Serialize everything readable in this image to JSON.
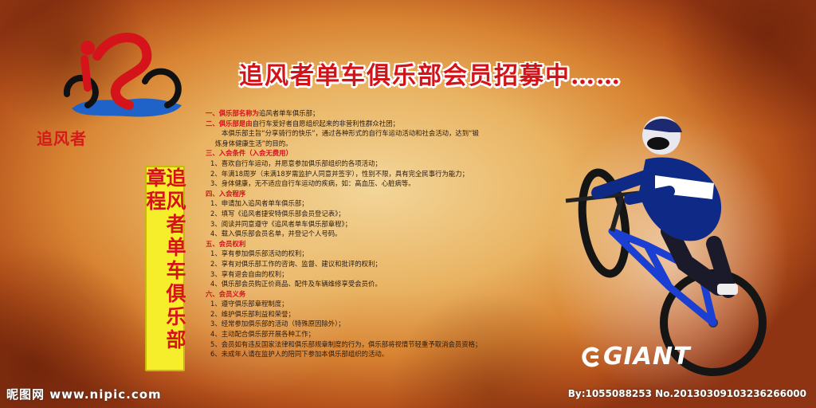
{
  "logo": {
    "text": "追风者"
  },
  "headline": "追风者单车俱乐部会员招募中……",
  "charter": "追风者单车俱乐部章程",
  "brand": "GIANT",
  "watermark": {
    "site": "昵图网 www.nipic.com",
    "id": "By:1055088253  No.20130309103236266000"
  },
  "rules": [
    {
      "type": "sec",
      "head": "一、俱乐部名称为",
      "rest": "追风者单车俱乐部；"
    },
    {
      "type": "sec",
      "head": "二、俱乐部是由",
      "rest": "自行车爱好者自愿组织起来的非营利性群众社团；"
    },
    {
      "type": "i2",
      "text": "本俱乐部主旨“分享骑行的快乐”，通过各种形式的自行车运动活动和社会活动，达到“锻"
    },
    {
      "type": "i3",
      "text": "炼身体健康生活”的目的。"
    },
    {
      "type": "sec",
      "head": "三、入会条件（入会无费用）",
      "rest": ""
    },
    {
      "type": "i1",
      "text": "1、喜欢自行车运动，并愿意参加俱乐部组织的各项活动；"
    },
    {
      "type": "i1",
      "text": "2、年满18周岁（未满18岁需监护人同意并签字），性别不限，具有完全民事行为能力；"
    },
    {
      "type": "i1",
      "text": "3、身体健康，无不适应自行车运动的疾病，如：高血压、心脏病等。"
    },
    {
      "type": "sec",
      "head": "四、入会程序",
      "rest": ""
    },
    {
      "type": "i1",
      "text": "1、申请加入追风者单车俱乐部；"
    },
    {
      "type": "i1",
      "text": "2、填写《追风者捷安特俱乐部会员登记表》；"
    },
    {
      "type": "i1",
      "text": "3、阅读并同意遵守《追风者单车俱乐部章程》；"
    },
    {
      "type": "i1",
      "text": "4、载入俱乐部会员名单，并登记个人号码。"
    },
    {
      "type": "sec",
      "head": "五、会员权利",
      "rest": ""
    },
    {
      "type": "i1",
      "text": "1、享有参加俱乐部活动的权利；"
    },
    {
      "type": "i1",
      "text": "2、享有对俱乐部工作的咨询、监督、建议和批评的权利；"
    },
    {
      "type": "i1",
      "text": "3、享有退会自由的权利；"
    },
    {
      "type": "i1",
      "text": "4、俱乐部会员购正价商品、配件及车辆维修享受会员价。"
    },
    {
      "type": "sec",
      "head": "六、会员义务",
      "rest": ""
    },
    {
      "type": "i1",
      "text": "1、遵守俱乐部章程制度；"
    },
    {
      "type": "i1",
      "text": "2、维护俱乐部利益和荣誉；"
    },
    {
      "type": "i1",
      "text": "3、经常参加俱乐部的活动（特殊原因除外）；"
    },
    {
      "type": "i1",
      "text": "4、主动配合俱乐部开展各种工作；"
    },
    {
      "type": "i1",
      "text": "5、会员如有违反国家法律和俱乐部规章制度的行为，俱乐部将视情节轻重予取消会员资格；"
    },
    {
      "type": "i1",
      "text": "6、未成年人请在监护人的陪同下参加本俱乐部组织的活动。"
    }
  ]
}
